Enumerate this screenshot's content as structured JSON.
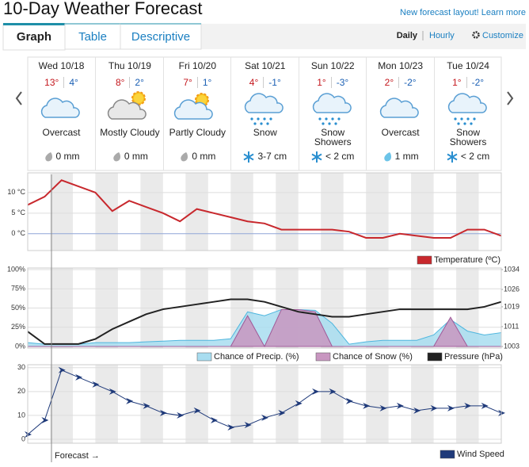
{
  "header": {
    "title": "10-Day Weather Forecast",
    "link": "New forecast layout! Learn more"
  },
  "tabs": [
    "Graph",
    "Table",
    "Descriptive"
  ],
  "view": {
    "daily": "Daily",
    "hourly": "Hourly",
    "customize": "Customize"
  },
  "days": [
    {
      "date": "Wed 10/18",
      "high": "13°",
      "low": "4°",
      "condition": "Overcast",
      "precip": "0 mm"
    },
    {
      "date": "Thu 10/19",
      "high": "8°",
      "low": "2°",
      "condition": "Mostly Cloudy",
      "precip": "0 mm"
    },
    {
      "date": "Fri 10/20",
      "high": "7°",
      "low": "1°",
      "condition": "Partly Cloudy",
      "precip": "0 mm"
    },
    {
      "date": "Sat 10/21",
      "high": "4°",
      "low": "-1°",
      "condition": "Snow",
      "precip": "3-7 cm"
    },
    {
      "date": "Sun 10/22",
      "high": "1°",
      "low": "-3°",
      "condition": "Snow Showers",
      "precip": "< 2 cm"
    },
    {
      "date": "Mon 10/23",
      "high": "2°",
      "low": "-2°",
      "condition": "Overcast",
      "precip": "1 mm"
    },
    {
      "date": "Tue 10/24",
      "high": "1°",
      "low": "-2°",
      "condition": "Snow Showers",
      "precip": "< 2 cm"
    }
  ],
  "chart_data": [
    {
      "type": "line",
      "ylim": [
        -3.7,
        14.4
      ],
      "yticks": [
        {
          "value": 0,
          "label": "0 °C"
        },
        {
          "value": 5,
          "label": "5 °C"
        },
        {
          "value": 10,
          "label": "10 °C"
        }
      ],
      "series": [
        {
          "name": "Temperature (ºC)",
          "color": "#c8282d",
          "values": [
            7,
            9,
            13,
            11.5,
            10,
            5.5,
            8,
            6.5,
            5,
            3,
            6,
            5,
            4,
            3,
            2.5,
            1,
            1,
            1,
            1,
            0.5,
            -1,
            -1,
            0,
            -0.5,
            -1,
            -1,
            1,
            1,
            -0.5
          ]
        }
      ]
    },
    {
      "type": "combo",
      "ylim": [
        0,
        100
      ],
      "yticks": [
        {
          "value": 0,
          "label": "0%"
        },
        {
          "value": 25,
          "label": "25%"
        },
        {
          "value": 50,
          "label": "50%"
        },
        {
          "value": 75,
          "label": "75%"
        },
        {
          "value": 100,
          "label": "100%"
        }
      ],
      "y2lim": [
        1003,
        1034
      ],
      "y2ticks": [
        1003,
        1011,
        1019,
        1026,
        1034
      ],
      "series": [
        {
          "name": "Chance of Precip. (%)",
          "color": "#a8ddf0",
          "values": [
            5,
            3,
            3,
            3,
            5,
            5,
            5,
            6,
            7,
            8,
            8,
            8,
            10,
            45,
            40,
            48,
            48,
            47,
            30,
            3,
            6,
            8,
            8,
            8,
            15,
            35,
            20,
            15,
            18
          ]
        },
        {
          "name": "Chance of Snow (%)",
          "color": "#c896c0",
          "values": [
            0,
            0,
            0,
            0,
            0,
            0,
            0,
            0,
            0,
            0,
            0,
            0,
            0,
            40,
            0,
            48,
            48,
            45,
            0,
            0,
            0,
            0,
            0,
            0,
            0,
            38,
            0,
            0,
            0
          ]
        },
        {
          "name": "Pressure (hPa)",
          "color": "#222222",
          "axis": "y2",
          "values": [
            1009,
            1004,
            1004,
            1004,
            1006,
            1010,
            1013,
            1016,
            1018,
            1019,
            1020,
            1021,
            1022,
            1022,
            1021,
            1019,
            1017,
            1016,
            1015,
            1015,
            1016,
            1017,
            1018,
            1018,
            1018,
            1018,
            1018,
            1019,
            1021
          ]
        }
      ]
    },
    {
      "type": "line",
      "ylim": [
        -1,
        30.6
      ],
      "yticks": [
        0,
        10,
        20,
        30
      ],
      "annotation": "Forecast →",
      "series": [
        {
          "name": "Wind Speed",
          "color": "#1f3a7a",
          "values": [
            2,
            8,
            29,
            26,
            23,
            20,
            16,
            14,
            11,
            10,
            12,
            8,
            5,
            6,
            9,
            11,
            15,
            20,
            20,
            16,
            14,
            13,
            14,
            12,
            13,
            13,
            14,
            14,
            11
          ]
        }
      ]
    }
  ]
}
